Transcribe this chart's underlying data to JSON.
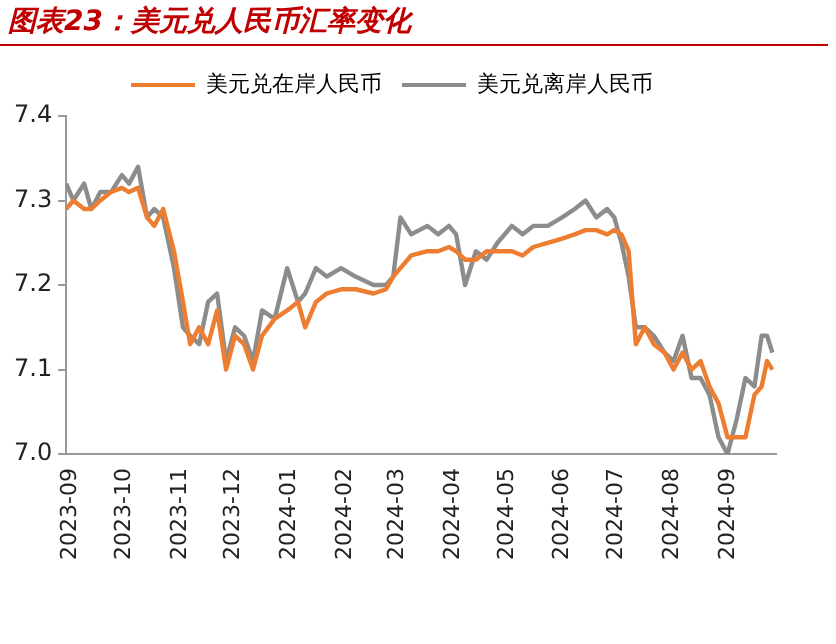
{
  "chart_data": {
    "type": "line",
    "title": "图表23：美元兑人民币汇率变化",
    "x": [
      "2023-09-01",
      "2023-09-05",
      "2023-09-11",
      "2023-09-15",
      "2023-09-20",
      "2023-09-26",
      "2023-10-02",
      "2023-10-06",
      "2023-10-11",
      "2023-10-16",
      "2023-10-20",
      "2023-10-25",
      "2023-10-31",
      "2023-11-05",
      "2023-11-09",
      "2023-11-14",
      "2023-11-19",
      "2023-11-24",
      "2023-11-29",
      "2023-12-04",
      "2023-12-09",
      "2023-12-14",
      "2023-12-19",
      "2023-12-26",
      "2024-01-02",
      "2024-01-08",
      "2024-01-12",
      "2024-01-18",
      "2024-01-24",
      "2024-02-01",
      "2024-02-09",
      "2024-02-19",
      "2024-02-26",
      "2024-03-01",
      "2024-03-05",
      "2024-03-11",
      "2024-03-20",
      "2024-03-26",
      "2024-04-01",
      "2024-04-05",
      "2024-04-10",
      "2024-04-16",
      "2024-04-22",
      "2024-04-28",
      "2024-05-06",
      "2024-05-12",
      "2024-05-18",
      "2024-05-26",
      "2024-06-03",
      "2024-06-10",
      "2024-06-16",
      "2024-06-22",
      "2024-06-28",
      "2024-07-02",
      "2024-07-06",
      "2024-07-10",
      "2024-07-14",
      "2024-07-19",
      "2024-07-24",
      "2024-07-30",
      "2024-08-04",
      "2024-08-09",
      "2024-08-14",
      "2024-08-19",
      "2024-08-24",
      "2024-08-29",
      "2024-09-03",
      "2024-09-08",
      "2024-09-13",
      "2024-09-18",
      "2024-09-22",
      "2024-09-25",
      "2024-09-28"
    ],
    "series": [
      {
        "name": "美元兑在岸人民币",
        "color": "#ed7d31",
        "values": [
          7.29,
          7.3,
          7.29,
          7.29,
          7.3,
          7.31,
          7.315,
          7.31,
          7.315,
          7.28,
          7.27,
          7.29,
          7.24,
          7.18,
          7.13,
          7.15,
          7.13,
          7.17,
          7.1,
          7.14,
          7.13,
          7.1,
          7.14,
          7.16,
          7.17,
          7.18,
          7.15,
          7.18,
          7.19,
          7.195,
          7.195,
          7.19,
          7.195,
          7.21,
          7.22,
          7.235,
          7.24,
          7.24,
          7.245,
          7.24,
          7.23,
          7.23,
          7.24,
          7.24,
          7.24,
          7.235,
          7.245,
          7.25,
          7.255,
          7.26,
          7.265,
          7.265,
          7.26,
          7.265,
          7.26,
          7.24,
          7.13,
          7.15,
          7.13,
          7.12,
          7.1,
          7.12,
          7.1,
          7.11,
          7.08,
          7.06,
          7.02,
          7.02,
          7.02,
          7.07,
          7.08,
          7.11,
          7.1
        ]
      },
      {
        "name": "美元兑离岸人民币",
        "color": "#8c8c8c",
        "values": [
          7.32,
          7.3,
          7.32,
          7.29,
          7.31,
          7.31,
          7.33,
          7.32,
          7.34,
          7.28,
          7.29,
          7.28,
          7.22,
          7.15,
          7.14,
          7.13,
          7.18,
          7.19,
          7.11,
          7.15,
          7.14,
          7.11,
          7.17,
          7.16,
          7.22,
          7.18,
          7.19,
          7.22,
          7.21,
          7.22,
          7.21,
          7.2,
          7.2,
          7.21,
          7.28,
          7.26,
          7.27,
          7.26,
          7.27,
          7.26,
          7.2,
          7.24,
          7.23,
          7.25,
          7.27,
          7.26,
          7.27,
          7.27,
          7.28,
          7.29,
          7.3,
          7.28,
          7.29,
          7.28,
          7.25,
          7.21,
          7.15,
          7.15,
          7.14,
          7.12,
          7.11,
          7.14,
          7.09,
          7.09,
          7.07,
          7.02,
          7.0,
          7.04,
          7.09,
          7.08,
          7.14,
          7.14,
          7.12
        ]
      }
    ],
    "xlim": [
      "2023-09-01",
      "2024-09-30"
    ],
    "xticks": [
      {
        "value": "2023-09-01",
        "label": "2023-09"
      },
      {
        "value": "2023-10-01",
        "label": "2023-10"
      },
      {
        "value": "2023-11-01",
        "label": "2023-11"
      },
      {
        "value": "2023-12-01",
        "label": "2023-12"
      },
      {
        "value": "2024-01-01",
        "label": "2024-01"
      },
      {
        "value": "2024-02-01",
        "label": "2024-02"
      },
      {
        "value": "2024-03-01",
        "label": "2024-03"
      },
      {
        "value": "2024-04-01",
        "label": "2024-04"
      },
      {
        "value": "2024-05-01",
        "label": "2024-05"
      },
      {
        "value": "2024-06-01",
        "label": "2024-06"
      },
      {
        "value": "2024-07-01",
        "label": "2024-07"
      },
      {
        "value": "2024-08-01",
        "label": "2024-08"
      },
      {
        "value": "2024-09-01",
        "label": "2024-09"
      }
    ],
    "ylim": [
      7.0,
      7.4
    ],
    "yticks": [
      {
        "value": 7,
        "label": "7.0"
      },
      7.1,
      7.2,
      7.3,
      7.4
    ],
    "grid": false,
    "legend": "top",
    "marker": "none",
    "line_style": "solid"
  }
}
